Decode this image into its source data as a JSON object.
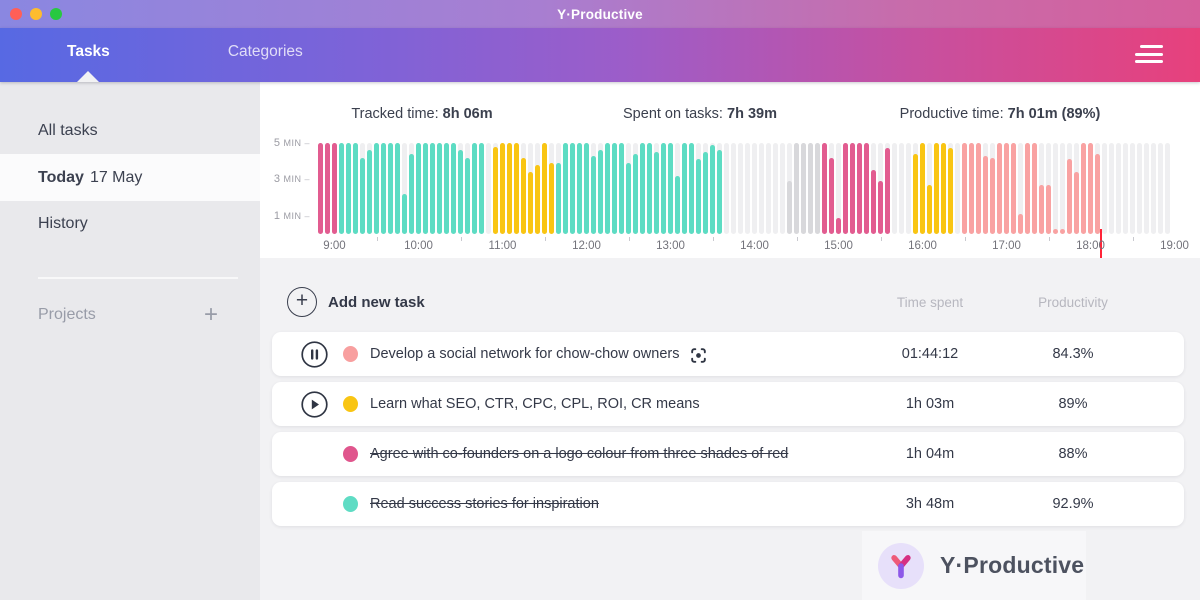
{
  "window": {
    "title": "Y·Productive"
  },
  "nav": {
    "tabs": [
      {
        "label": "Tasks",
        "active": true
      },
      {
        "label": "Categories",
        "active": false
      }
    ],
    "menu_icon": "hamburger-icon"
  },
  "sidebar": {
    "items": [
      {
        "label": "All tasks",
        "selected": false
      },
      {
        "label": "Today",
        "suffix": "17 May",
        "selected": true
      },
      {
        "label": "History",
        "selected": false
      }
    ],
    "projects_label": "Projects",
    "add_project_glyph": "+"
  },
  "stats": [
    {
      "label": "Tracked time: ",
      "value": "8h 06m"
    },
    {
      "label": "Spent on tasks: ",
      "value": "7h 39m"
    },
    {
      "label": "Productive time: ",
      "value": "7h 01m (89%)"
    }
  ],
  "chart_data": {
    "type": "bar",
    "title": "Minutes tracked per 5-minute interval",
    "start_time": "08:50",
    "interval_minutes": 5,
    "ylim": [
      0,
      5
    ],
    "y_tick_labels": [
      "5 MIN",
      "3 MIN",
      "1 MIN"
    ],
    "y_tick_values": [
      5,
      3,
      1
    ],
    "x_labels": [
      "9:00",
      "10:00",
      "11:00",
      "12:00",
      "13:00",
      "14:00",
      "15:00",
      "16:00",
      "17:00",
      "18:00",
      "19:00"
    ],
    "now_marker": "18:05",
    "palette": {
      "T": "#5ddcc3",
      "Y": "#f9c513",
      "P": "#e25c90",
      "S": "#f9a2a2",
      "G": "#d8d8db",
      "E": "transparent"
    },
    "palette_legend": {
      "T": "teal task",
      "Y": "yellow task",
      "P": "pink task",
      "S": "salmon task",
      "G": "tracked unassigned",
      "E": "idle"
    },
    "bars": [
      [
        "P",
        5
      ],
      [
        "P",
        5
      ],
      [
        "P",
        5
      ],
      [
        "T",
        5
      ],
      [
        "T",
        5
      ],
      [
        "T",
        5
      ],
      [
        "T",
        4.2
      ],
      [
        "T",
        4.6
      ],
      [
        "T",
        5
      ],
      [
        "T",
        5
      ],
      [
        "T",
        5
      ],
      [
        "T",
        5
      ],
      [
        "T",
        2.2
      ],
      [
        "T",
        4.4
      ],
      [
        "T",
        5
      ],
      [
        "T",
        5
      ],
      [
        "T",
        5
      ],
      [
        "T",
        5
      ],
      [
        "T",
        5
      ],
      [
        "T",
        5
      ],
      [
        "T",
        4.6
      ],
      [
        "T",
        4.2
      ],
      [
        "T",
        5
      ],
      [
        "T",
        5
      ],
      [
        "E",
        0
      ],
      [
        "Y",
        4.8
      ],
      [
        "Y",
        5
      ],
      [
        "Y",
        5
      ],
      [
        "Y",
        5
      ],
      [
        "Y",
        4.2
      ],
      [
        "Y",
        3.4
      ],
      [
        "Y",
        3.8
      ],
      [
        "Y",
        5
      ],
      [
        "Y",
        3.9
      ],
      [
        "T",
        3.9
      ],
      [
        "T",
        5
      ],
      [
        "T",
        5
      ],
      [
        "T",
        5
      ],
      [
        "T",
        5
      ],
      [
        "T",
        4.3
      ],
      [
        "T",
        4.6
      ],
      [
        "T",
        5
      ],
      [
        "T",
        5
      ],
      [
        "T",
        5
      ],
      [
        "T",
        3.9
      ],
      [
        "T",
        4.4
      ],
      [
        "T",
        5
      ],
      [
        "T",
        5
      ],
      [
        "T",
        4.5
      ],
      [
        "T",
        5
      ],
      [
        "T",
        5
      ],
      [
        "T",
        3.2
      ],
      [
        "T",
        5
      ],
      [
        "T",
        5
      ],
      [
        "T",
        4.1
      ],
      [
        "T",
        4.5
      ],
      [
        "T",
        4.9
      ],
      [
        "T",
        4.6
      ],
      [
        "E",
        0
      ],
      [
        "E",
        0
      ],
      [
        "E",
        0
      ],
      [
        "E",
        0
      ],
      [
        "E",
        0
      ],
      [
        "E",
        0
      ],
      [
        "E",
        0
      ],
      [
        "E",
        0
      ],
      [
        "E",
        0
      ],
      [
        "G",
        2.9
      ],
      [
        "G",
        5
      ],
      [
        "G",
        5
      ],
      [
        "G",
        5
      ],
      [
        "G",
        5
      ],
      [
        "P",
        5
      ],
      [
        "P",
        4.2
      ],
      [
        "P",
        0.9
      ],
      [
        "P",
        5
      ],
      [
        "P",
        5
      ],
      [
        "P",
        5
      ],
      [
        "P",
        5
      ],
      [
        "P",
        3.5
      ],
      [
        "P",
        2.9
      ],
      [
        "P",
        4.7
      ],
      [
        "E",
        0
      ],
      [
        "E",
        0
      ],
      [
        "E",
        0
      ],
      [
        "Y",
        4.4
      ],
      [
        "Y",
        5
      ],
      [
        "Y",
        2.7
      ],
      [
        "Y",
        5
      ],
      [
        "Y",
        5
      ],
      [
        "Y",
        4.7
      ],
      [
        "E",
        0
      ],
      [
        "S",
        5
      ],
      [
        "S",
        5
      ],
      [
        "S",
        5
      ],
      [
        "S",
        4.3
      ],
      [
        "S",
        4.2
      ],
      [
        "S",
        5
      ],
      [
        "S",
        5
      ],
      [
        "S",
        5
      ],
      [
        "S",
        1.1
      ],
      [
        "S",
        5
      ],
      [
        "S",
        5
      ],
      [
        "S",
        2.7
      ],
      [
        "S",
        2.7
      ],
      [
        "S",
        0.3
      ],
      [
        "S",
        0.3
      ],
      [
        "S",
        4.1
      ],
      [
        "S",
        3.4
      ],
      [
        "S",
        5
      ],
      [
        "S",
        5
      ],
      [
        "S",
        4.4
      ],
      [
        "E",
        0
      ],
      [
        "E",
        0
      ],
      [
        "E",
        0
      ],
      [
        "E",
        0
      ],
      [
        "E",
        0
      ],
      [
        "E",
        0
      ],
      [
        "E",
        0
      ],
      [
        "E",
        0
      ],
      [
        "E",
        0
      ],
      [
        "E",
        0
      ]
    ]
  },
  "tasks": {
    "add_label": "Add new task",
    "columns": [
      "Time spent",
      "Productivity"
    ],
    "rows": [
      {
        "control": "pause",
        "dot_color": "#f89f9f",
        "title": "Develop a social network for chow-chow owners",
        "focus_icon": true,
        "time_spent": "01:44:12",
        "productivity": "84.3%",
        "completed": false
      },
      {
        "control": "play",
        "dot_color": "#f9c513",
        "title": "Learn what SEO, CTR, CPC, CPL, ROI, CR means",
        "focus_icon": false,
        "time_spent": "1h 03m",
        "productivity": "89%",
        "completed": false
      },
      {
        "control": "none",
        "dot_color": "#e0568d",
        "title": "Agree with co-founders on a logo colour from three shades of red",
        "focus_icon": false,
        "time_spent": "1h 04m",
        "productivity": "88%",
        "completed": true
      },
      {
        "control": "none",
        "dot_color": "#5fdcc4",
        "title": "Read success stories for inspiration",
        "focus_icon": false,
        "time_spent": "3h 48m",
        "productivity": "92.9%",
        "completed": true
      }
    ]
  },
  "footer": {
    "brand": "Y·Productive"
  },
  "colors": {
    "nav_gradient_left": "#5769e3",
    "nav_gradient_right": "#e7417c",
    "sidebar_bg": "#e9e9ec",
    "panel_bg": "#ffffff",
    "content_bg": "#f2f2f4",
    "now_line": "#ff2438",
    "text_dark": "#343948",
    "text_muted": "#b7b7bf"
  }
}
